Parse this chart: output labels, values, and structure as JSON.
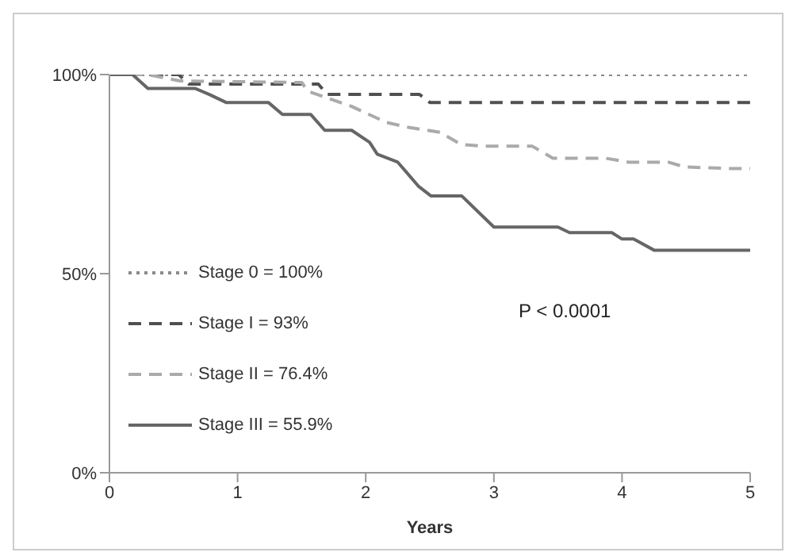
{
  "chart_data": {
    "type": "line",
    "xlabel": "Years",
    "xlim": [
      0,
      5
    ],
    "xticks": [
      0,
      1,
      2,
      3,
      4,
      5
    ],
    "ylim": [
      0,
      100
    ],
    "yticks": [
      {
        "value": 0,
        "label": "0%"
      },
      {
        "value": 50,
        "label": "50%"
      },
      {
        "value": 100,
        "label": "100%"
      }
    ],
    "grid": false,
    "legend": "bottom left",
    "marker": "none",
    "annotations": [
      "P < 0.0001"
    ],
    "series": [
      {
        "name": "Stage 0  = 100%",
        "color": "#8a8a8a",
        "line_style": "dotted",
        "x": [
          0,
          5
        ],
        "values": [
          100,
          100
        ]
      },
      {
        "name": "Stage I = 93%",
        "color": "#505050",
        "line_style": "dashed",
        "x": [
          0,
          0.54,
          0.62,
          1.63,
          1.7,
          2.42,
          2.5,
          5
        ],
        "values": [
          100,
          100,
          97.6,
          97.6,
          95,
          95,
          93,
          93
        ]
      },
      {
        "name": "Stage II = 76.4%",
        "color": "#aaaaaa",
        "line_style": "dashed",
        "x": [
          0,
          0.3,
          0.55,
          1.5,
          1.55,
          1.89,
          2.16,
          2.34,
          2.58,
          2.74,
          2.91,
          3.3,
          3.46,
          3.87,
          4.05,
          4.36,
          4.49,
          4.84,
          5
        ],
        "values": [
          100,
          100,
          98.4,
          98,
          95.8,
          92,
          88,
          86.7,
          85.5,
          82.5,
          82,
          82,
          79,
          79,
          78,
          78,
          76.8,
          76.4,
          76.4
        ]
      },
      {
        "name": "Stage III = 55.9%",
        "color": "#666666",
        "line_style": "solid",
        "x": [
          0,
          0.18,
          0.3,
          0.67,
          0.78,
          0.91,
          1.24,
          1.35,
          1.57,
          1.68,
          1.89,
          2.03,
          2.09,
          2.25,
          2.41,
          2.51,
          2.75,
          3.0,
          3.5,
          3.59,
          3.92,
          4.0,
          4.09,
          4.25,
          5
        ],
        "values": [
          100,
          100,
          96.5,
          96.5,
          95,
          93,
          93,
          90,
          90,
          86,
          86,
          83,
          80,
          78,
          72,
          69.5,
          69.5,
          61.7,
          61.7,
          60.3,
          60.3,
          58.7,
          58.7,
          55.9,
          55.9
        ]
      }
    ]
  }
}
